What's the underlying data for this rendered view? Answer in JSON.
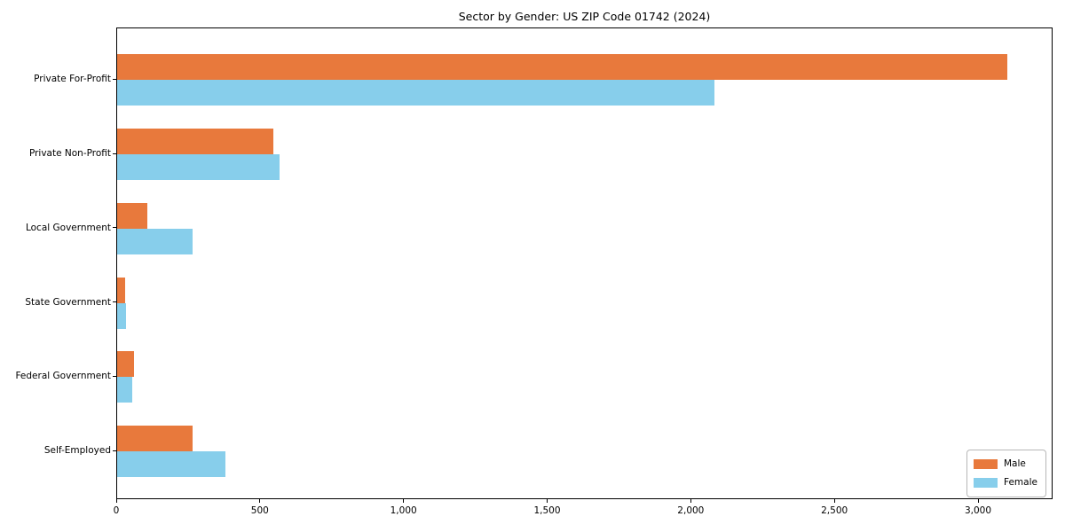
{
  "title": "Sector by Gender: US ZIP Code 01742 (2024)",
  "chart_data": {
    "type": "bar",
    "orientation": "horizontal",
    "title": "Sector by Gender: US ZIP Code 01742 (2024)",
    "xlabel": "",
    "ylabel": "",
    "categories": [
      "Private For-Profit",
      "Private Non-Profit",
      "Local Government",
      "State Government",
      "Federal Government",
      "Self-Employed"
    ],
    "series": [
      {
        "name": "Male",
        "color": "#E8793C",
        "values": [
          3100,
          543,
          105,
          28,
          59,
          263
        ]
      },
      {
        "name": "Female",
        "color": "#87CEEB",
        "values": [
          2080,
          566,
          262,
          31,
          52,
          376
        ]
      }
    ],
    "xlim": [
      0,
      3260
    ],
    "xticks": [
      0,
      500,
      1000,
      1500,
      2000,
      2500,
      3000
    ],
    "xtick_labels": [
      "0",
      "500",
      "1,000",
      "1,500",
      "2,000",
      "2,500",
      "3,000"
    ],
    "grid": false,
    "legend_position": "lower right"
  },
  "legend": {
    "items": [
      {
        "label": "Male",
        "color": "#E8793C"
      },
      {
        "label": "Female",
        "color": "#87CEEB"
      }
    ]
  }
}
